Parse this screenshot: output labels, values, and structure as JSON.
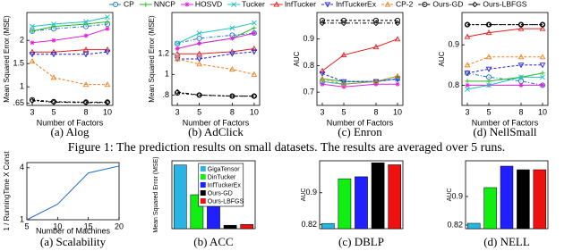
{
  "chart_data": [
    {
      "type": "line",
      "subtitle": "(a) Alog",
      "xlabel": "Number of Factors",
      "ylabel": "Mean Squared Error (MSE)",
      "x": [
        3,
        5,
        8,
        10
      ],
      "xlim": [
        2.5,
        10.5
      ],
      "xticks": [
        3,
        5,
        8,
        10
      ],
      "ylim": [
        0.6,
        2.6
      ],
      "yticks": [
        {
          "value": 0.65,
          "label": ".65"
        },
        1,
        1.5,
        2
      ],
      "series": [
        {
          "name": "CP",
          "color": "#1f77d0",
          "marker": "o",
          "line_style": "-.",
          "values": [
            2.2,
            2.25,
            2.3,
            2.35
          ]
        },
        {
          "name": "NNCP",
          "color": "#22bb22",
          "marker": "+",
          "line_style": "-",
          "values": [
            2.2,
            2.3,
            2.35,
            2.4
          ]
        },
        {
          "name": "HOSVD",
          "color": "#e020e0",
          "marker": "*",
          "line_style": "-",
          "values": [
            1.95,
            2.0,
            2.1,
            2.25
          ]
        },
        {
          "name": "Tucker",
          "color": "#20c0c0",
          "marker": "x",
          "line_style": "-",
          "values": [
            2.3,
            2.35,
            2.4,
            2.5
          ]
        },
        {
          "name": "InfTucker",
          "color": "#e02020",
          "marker": "^",
          "line_style": "-",
          "values": [
            1.75,
            1.75,
            1.8,
            1.8
          ]
        },
        {
          "name": "InfTuckerEx",
          "color": "#2020e0",
          "marker": "v",
          "line_style": "--",
          "values": [
            1.7,
            1.7,
            1.7,
            1.75
          ]
        },
        {
          "name": "CP-2",
          "color": "#f08020",
          "marker": "^",
          "line_style": "--",
          "values": [
            1.55,
            1.2,
            1.05,
            1.05
          ]
        },
        {
          "name": "Ours-GD",
          "color": "#000000",
          "marker": "o",
          "line_style": "--",
          "values": [
            0.72,
            0.68,
            0.67,
            0.67
          ]
        },
        {
          "name": "Ours-LBFGS",
          "color": "#000000",
          "marker": "d",
          "line_style": "-.",
          "values": [
            0.7,
            0.67,
            0.66,
            0.66
          ]
        }
      ]
    },
    {
      "type": "line",
      "subtitle": "(b) AdClick",
      "xlabel": "Number of Factors",
      "ylabel": "Mean Squared Error (MSE)",
      "x": [
        3,
        5,
        8,
        10
      ],
      "xlim": [
        2.5,
        10.5
      ],
      "xticks": [
        3,
        5,
        8,
        10
      ],
      "ylim": [
        0.7,
        1.6
      ],
      "yticks": [
        {
          "value": 0.8,
          "label": ".8"
        },
        1,
        1.2
      ],
      "series": [
        {
          "color": "#1f77d0",
          "marker": "o",
          "line_style": "-.",
          "values": [
            1.3,
            1.35,
            1.38,
            1.4
          ]
        },
        {
          "color": "#22bb22",
          "marker": "+",
          "line_style": "-",
          "values": [
            1.25,
            1.3,
            1.35,
            1.45
          ]
        },
        {
          "color": "#e020e0",
          "marker": "*",
          "line_style": "-",
          "values": [
            1.25,
            1.3,
            1.35,
            1.4
          ]
        },
        {
          "color": "#20c0c0",
          "marker": "x",
          "line_style": "-",
          "values": [
            1.3,
            1.4,
            1.45,
            1.5
          ]
        },
        {
          "color": "#e02020",
          "marker": "^",
          "line_style": "-",
          "values": [
            1.2,
            1.2,
            1.22,
            1.25
          ]
        },
        {
          "color": "#2020e0",
          "marker": "v",
          "line_style": "--",
          "values": [
            1.15,
            1.15,
            1.2,
            1.22
          ]
        },
        {
          "color": "#f08020",
          "marker": "^",
          "line_style": "--",
          "values": [
            1.15,
            1.1,
            1.05,
            1.0
          ]
        },
        {
          "color": "#000000",
          "marker": "o",
          "line_style": "--",
          "values": [
            0.82,
            0.8,
            0.79,
            0.79
          ]
        },
        {
          "color": "#000000",
          "marker": "d",
          "line_style": "-.",
          "values": [
            0.83,
            0.8,
            0.79,
            0.79
          ]
        }
      ]
    },
    {
      "type": "line",
      "subtitle": "(c) Enron",
      "xlabel": "Number of Factors",
      "ylabel": "AUC",
      "x": [
        3,
        5,
        8,
        10
      ],
      "xlim": [
        2.5,
        10.5
      ],
      "xticks": [
        3,
        5,
        8,
        10
      ],
      "ylim": [
        0.65,
        1.0
      ],
      "yticks": [
        0.7,
        0.8,
        0.9
      ],
      "series": [
        {
          "color": "#1f77d0",
          "marker": "o",
          "line_style": "-.",
          "values": [
            0.74,
            0.73,
            0.74,
            0.75
          ]
        },
        {
          "color": "#22bb22",
          "marker": "+",
          "line_style": "-",
          "values": [
            0.75,
            0.74,
            0.74,
            0.76
          ]
        },
        {
          "color": "#e020e0",
          "marker": "*",
          "line_style": "-",
          "values": [
            0.73,
            0.72,
            0.73,
            0.73
          ]
        },
        {
          "color": "#20c0c0",
          "marker": "x",
          "line_style": "-",
          "values": [
            0.74,
            0.73,
            0.74,
            0.75
          ]
        },
        {
          "color": "#e02020",
          "marker": "^",
          "line_style": "-",
          "values": [
            0.78,
            0.84,
            0.87,
            0.9
          ]
        },
        {
          "color": "#2020e0",
          "marker": "v",
          "line_style": "--",
          "values": [
            0.77,
            0.74,
            0.74,
            0.75
          ]
        },
        {
          "color": "#f08020",
          "marker": "^",
          "line_style": "--",
          "values": [
            0.75,
            0.73,
            0.74,
            0.76
          ]
        },
        {
          "color": "#000000",
          "marker": "o",
          "line_style": "--",
          "values": [
            0.97,
            0.97,
            0.97,
            0.97
          ]
        },
        {
          "color": "#000000",
          "marker": "d",
          "line_style": "-.",
          "values": [
            0.96,
            0.96,
            0.96,
            0.96
          ]
        }
      ]
    },
    {
      "type": "line",
      "subtitle": "(d) NellSmall",
      "xlabel": "Number of Factors",
      "ylabel": "AUC",
      "x": [
        3,
        5,
        8,
        10
      ],
      "xlim": [
        2.5,
        10.5
      ],
      "xticks": [
        3,
        5,
        8,
        10
      ],
      "ylim": [
        0.75,
        0.98
      ],
      "yticks": [
        0.8,
        0.9
      ],
      "series": [
        {
          "color": "#1f77d0",
          "marker": "o",
          "line_style": "-.",
          "values": [
            0.83,
            0.82,
            0.81,
            0.8
          ]
        },
        {
          "color": "#22bb22",
          "marker": "+",
          "line_style": "-",
          "values": [
            0.81,
            0.81,
            0.82,
            0.83
          ]
        },
        {
          "color": "#e020e0",
          "marker": "*",
          "line_style": "-",
          "values": [
            0.8,
            0.8,
            0.8,
            0.8
          ]
        },
        {
          "color": "#20c0c0",
          "marker": "x",
          "line_style": "-",
          "values": [
            0.79,
            0.8,
            0.82,
            0.82
          ]
        },
        {
          "color": "#e02020",
          "marker": "^",
          "line_style": "-",
          "values": [
            0.92,
            0.93,
            0.94,
            0.94
          ]
        },
        {
          "color": "#2020e0",
          "marker": "v",
          "line_style": "--",
          "values": [
            0.83,
            0.84,
            0.85,
            0.85
          ]
        },
        {
          "color": "#f08020",
          "marker": "^",
          "line_style": "--",
          "values": [
            0.85,
            0.87,
            0.87,
            0.87
          ]
        },
        {
          "color": "#000000",
          "marker": "o",
          "line_style": "--",
          "values": [
            0.95,
            0.95,
            0.95,
            0.95
          ]
        },
        {
          "color": "#000000",
          "marker": "d",
          "line_style": "-.",
          "values": [
            0.95,
            0.95,
            0.95,
            0.95
          ]
        }
      ]
    },
    {
      "type": "line",
      "subtitle": "(a) Scalability",
      "xlabel": "Number of Machines",
      "ylabel": "1 / RunningTime X Const",
      "x": [
        5,
        10,
        15,
        20
      ],
      "xlim": [
        5,
        20
      ],
      "xticks": [
        5,
        10,
        15,
        20
      ],
      "ylim": [
        1,
        4.3
      ],
      "yticks": [
        1,
        4
      ],
      "series": [
        {
          "color": "#2070d0",
          "marker": "none",
          "line_style": "-",
          "values": [
            1,
            1.9,
            3.7,
            4.1
          ]
        }
      ]
    },
    {
      "type": "bar",
      "subtitle": "(b) ACC",
      "ylabel": "Mean Squared Error (MSE)",
      "legend": true,
      "categories": [
        "GigaTensor",
        "DinTucker",
        "InfTuckerEx",
        "Ours-GD",
        "Ours-LBFGS"
      ],
      "values": [
        0.85,
        0.5,
        0.48,
        0.14,
        0.15
      ],
      "colors": [
        "#29b4e3",
        "#11ee11",
        "#1f1fff",
        "#000000",
        "#ee1111"
      ],
      "ylim": [
        0.1,
        0.9
      ]
    },
    {
      "type": "bar",
      "subtitle": "(c) DBLP",
      "ylabel": "AUC",
      "legend": false,
      "values": [
        0.823,
        0.935,
        0.94,
        0.975,
        0.97
      ],
      "colors": [
        "#29b4e3",
        "#11ee11",
        "#1f1fff",
        "#000000",
        "#ee1111"
      ],
      "ylim": [
        0.81,
        0.98
      ],
      "yticks": [
        0.82,
        0.9
      ]
    },
    {
      "type": "bar",
      "subtitle": "(d) NELL",
      "ylabel": "AUC",
      "legend": false,
      "values": [
        0.825,
        0.925,
        0.985,
        0.975,
        0.975
      ],
      "colors": [
        "#29b4e3",
        "#11ee11",
        "#1f1fff",
        "#000000",
        "#ee1111"
      ],
      "ylim": [
        0.81,
        1.0
      ],
      "yticks": [
        0.82,
        0.9
      ]
    }
  ],
  "caption": "Figure 1: The prediction results on small datasets. The results are averaged over 5 runs."
}
